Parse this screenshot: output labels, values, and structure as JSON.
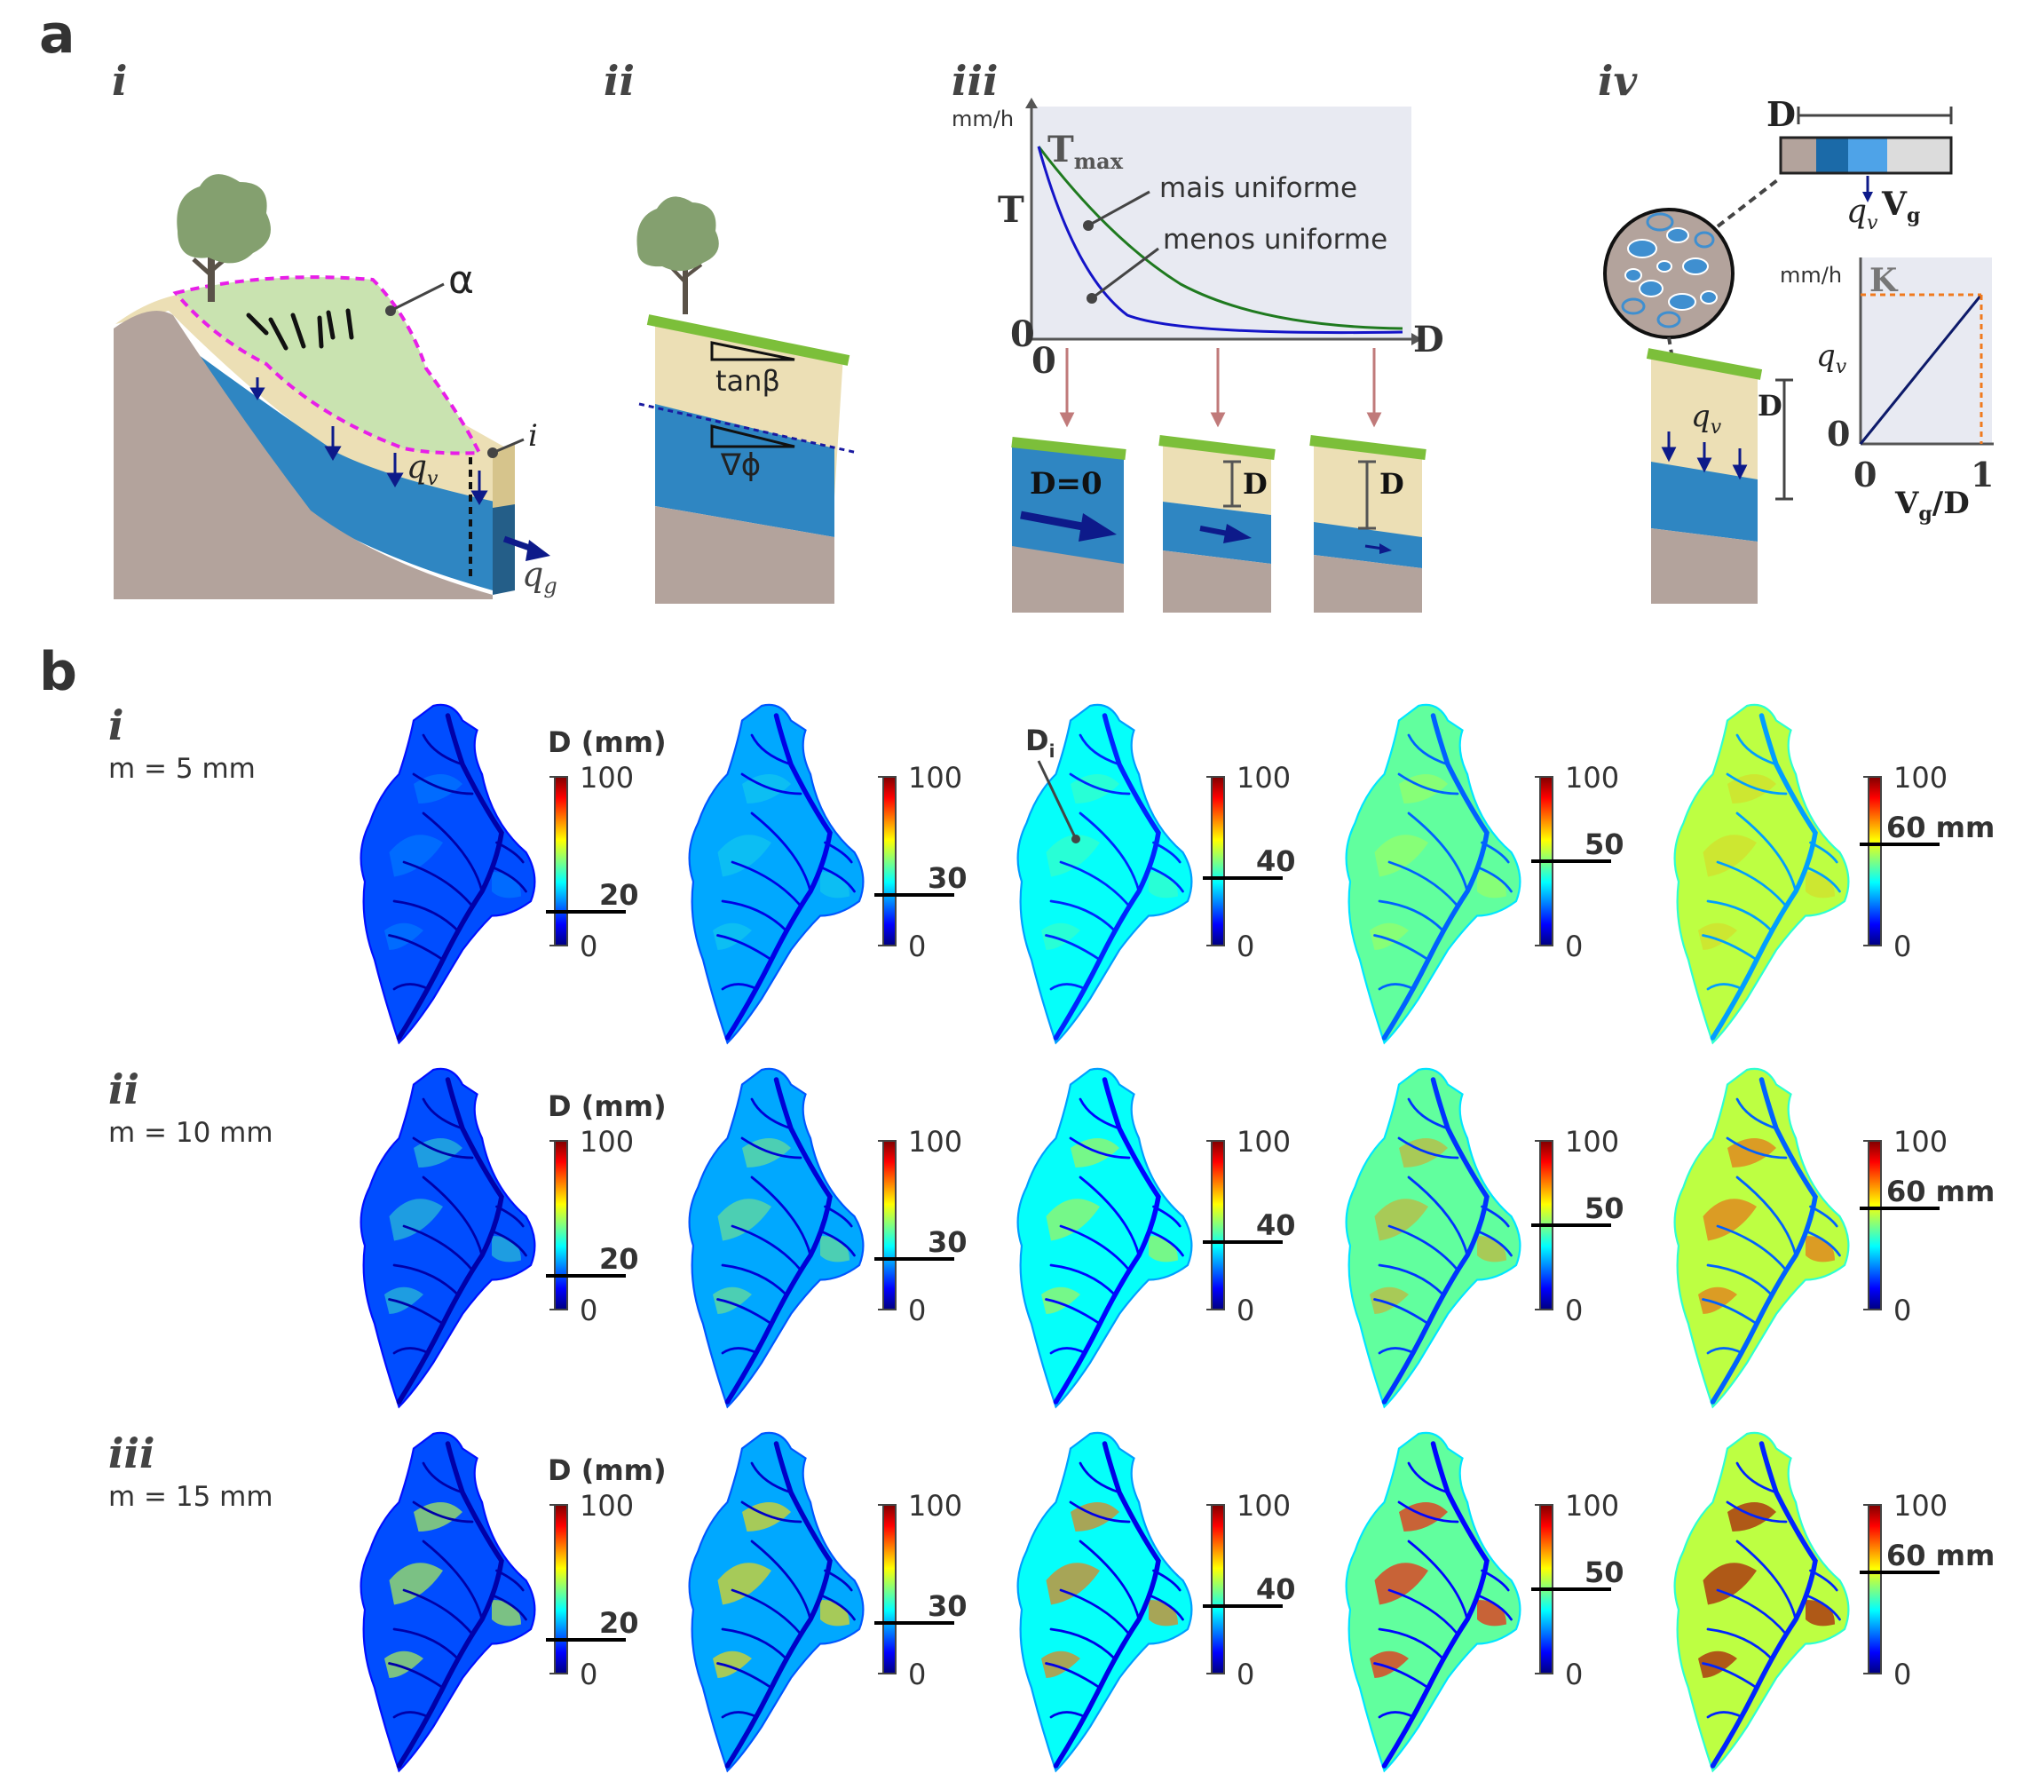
{
  "panel_a": {
    "letter": "a",
    "sub": [
      "i",
      "ii",
      "iii",
      "iv"
    ],
    "i_labels": {
      "alpha": "α",
      "point_i": "i",
      "qv": "q",
      "qv_sub": "v",
      "qg": "q",
      "qg_sub": "g"
    },
    "ii_labels": {
      "tanb": "tanβ",
      "grad": "∇ϕ"
    },
    "iii_labels": {
      "unit": "mm/h",
      "tmax": "T",
      "tmax_sub": "max",
      "T": "T",
      "zero": "0",
      "D": "D",
      "more_uniform": "mais uniforme",
      "less_uniform": "menos uniforme",
      "d_zero": "D=0",
      "d1": "D",
      "d2": "D"
    },
    "iv_labels": {
      "D_top": "D",
      "qv": "q",
      "qv_sub": "v",
      "Vg": "V",
      "Vg_sub": "g",
      "D_side": "D",
      "qv_soil": "q",
      "qv_soil_sub": "v",
      "unit": "mm/h",
      "K": "K",
      "y_axis": "q",
      "y_axis_sub": "v",
      "zero_y": "0",
      "zero_x": "0",
      "one_x": "1",
      "x_axis_a": "V",
      "x_axis_sub": "g",
      "x_axis_b": "/D"
    },
    "colors": {
      "sky": "#e8eaf2",
      "green_curve": "#1f7a1f",
      "blue_curve": "#1414c8",
      "dashed_magenta": "#e81ee8",
      "water": "#2f86c2",
      "soil": "#ecdfb5",
      "rock": "#b3a39c",
      "grass": "#7cbf3a",
      "orange_dash": "#f07a1e"
    }
  },
  "panel_b": {
    "letter": "b",
    "rows": [
      {
        "roman": "i",
        "label": "m = 5 mm"
      },
      {
        "roman": "ii",
        "label": "m = 10 mm"
      },
      {
        "roman": "iii",
        "label": "m = 15 mm"
      }
    ],
    "colorbar_title": "D (mm)",
    "colorbar_max": "100",
    "colorbar_min": "0",
    "thresholds": [
      "20",
      "30",
      "40",
      "50",
      "60 mm"
    ],
    "threshold_values": [
      20,
      30,
      40,
      50,
      60
    ],
    "di_label": "D",
    "di_sub": "i",
    "colormap": "jet"
  }
}
